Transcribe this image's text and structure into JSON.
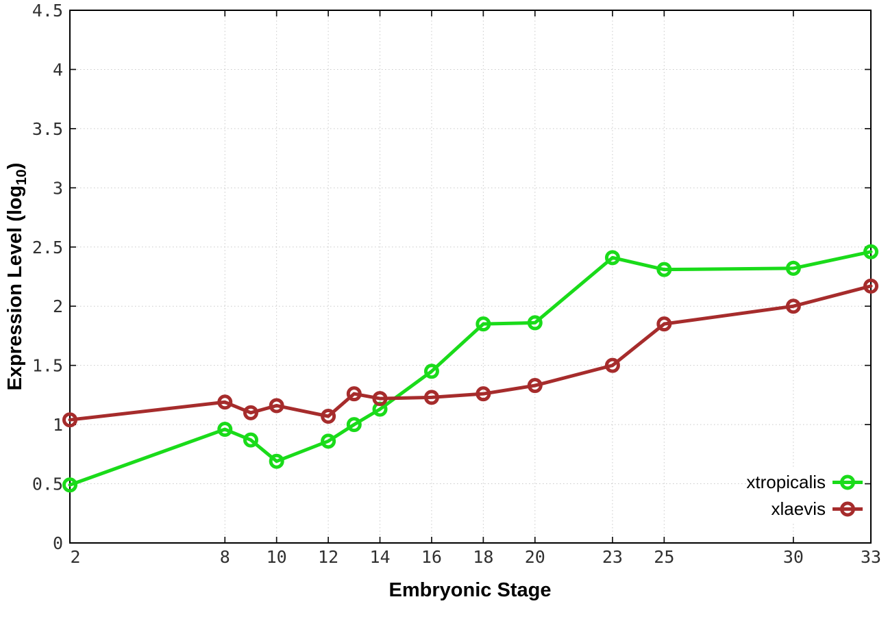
{
  "chart_data": {
    "type": "line",
    "x": [
      2,
      8,
      9,
      10,
      12,
      13,
      14,
      16,
      18,
      20,
      23,
      25,
      30,
      33
    ],
    "series": [
      {
        "name": "xtropicalis",
        "color": "#1adb1a",
        "values": [
          0.49,
          0.96,
          0.87,
          0.69,
          0.86,
          1.0,
          1.13,
          1.45,
          1.85,
          1.86,
          2.41,
          2.31,
          2.32,
          2.46
        ]
      },
      {
        "name": "xlaevis",
        "color": "#a62c2c",
        "values": [
          1.04,
          1.19,
          1.1,
          1.16,
          1.07,
          1.26,
          1.22,
          1.23,
          1.26,
          1.33,
          1.5,
          1.85,
          2.0,
          2.17
        ]
      }
    ],
    "xlabel": "Embryonic Stage",
    "ylabel": "Expression Level (log10)",
    "ylabel_main": "Expression Level (log",
    "ylabel_sub": "10",
    "ylabel_close": ")",
    "xlim": [
      2,
      33
    ],
    "ylim": [
      0,
      4.5
    ],
    "x_ticks": [
      2,
      8,
      10,
      12,
      14,
      16,
      18,
      20,
      23,
      25,
      30,
      33
    ],
    "x_tick_labels": [
      "2",
      "8",
      "10",
      "12",
      "14",
      "16",
      "18",
      "20",
      "23",
      "25",
      "30",
      "33"
    ],
    "y_ticks": [
      0,
      0.5,
      1,
      1.5,
      2,
      2.5,
      3,
      3.5,
      4,
      4.5
    ],
    "y_tick_labels": [
      "0",
      "0.5",
      "1",
      "1.5",
      "2",
      "2.5",
      "3",
      "3.5",
      "4",
      "4.5"
    ],
    "grid": true,
    "legend_position": "inside-bottom-right",
    "colors": {
      "background": "#ffffff",
      "border": "#000000",
      "gridline": "#c9c9c9",
      "tick_label": "#303030"
    }
  }
}
